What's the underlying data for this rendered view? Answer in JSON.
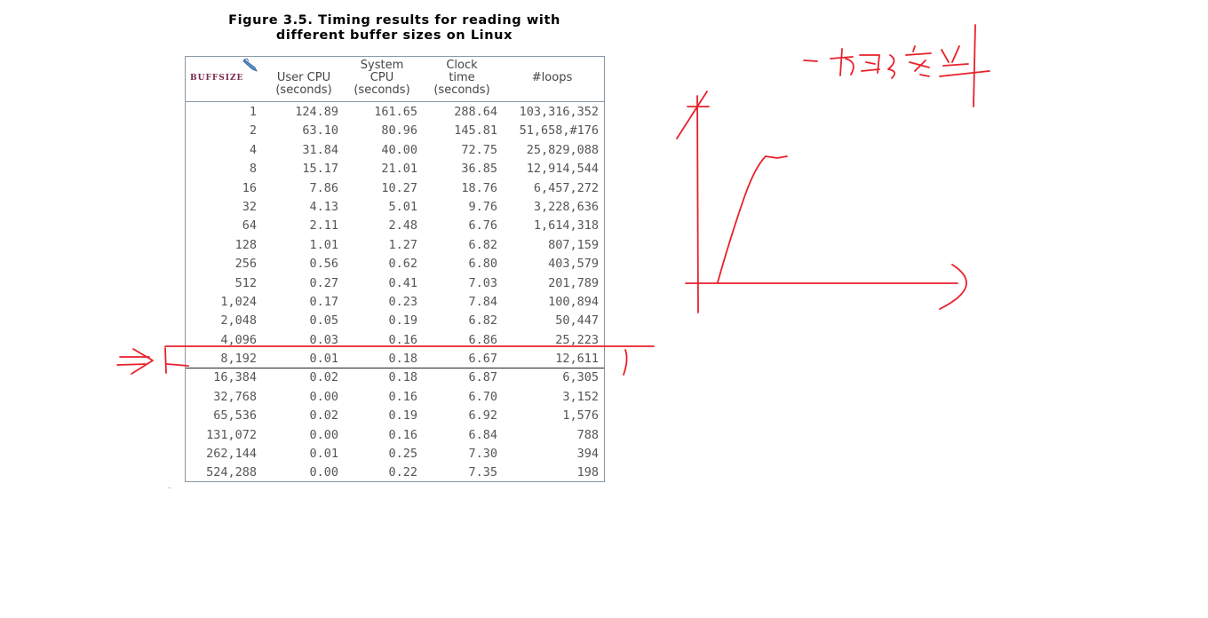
{
  "figure": {
    "title_line1": "Figure 3.5. Timing results for reading with",
    "title_line2": "different buffer sizes on Linux"
  },
  "table": {
    "headers": {
      "bufsize": "BUFFSIZE",
      "user_cpu": [
        "User CPU",
        "(seconds)"
      ],
      "system_cpu": [
        "System",
        "CPU",
        "(seconds)"
      ],
      "clock_time": [
        "Clock",
        "time",
        "(seconds)"
      ],
      "loops": [
        "#loops"
      ]
    },
    "rows": [
      [
        "1",
        "124.89",
        "161.65",
        "288.64",
        "103,316,352"
      ],
      [
        "2",
        "63.10",
        "80.96",
        "145.81",
        "51,658,#176"
      ],
      [
        "4",
        "31.84",
        "40.00",
        "72.75",
        "25,829,088"
      ],
      [
        "8",
        "15.17",
        "21.01",
        "36.85",
        "12,914,544"
      ],
      [
        "16",
        "7.86",
        "10.27",
        "18.76",
        "6,457,272"
      ],
      [
        "32",
        "4.13",
        "5.01",
        "9.76",
        "3,228,636"
      ],
      [
        "64",
        "2.11",
        "2.48",
        "6.76",
        "1,614,318"
      ],
      [
        "128",
        "1.01",
        "1.27",
        "6.82",
        "807,159"
      ],
      [
        "256",
        "0.56",
        "0.62",
        "6.80",
        "403,579"
      ],
      [
        "512",
        "0.27",
        "0.41",
        "7.03",
        "201,789"
      ],
      [
        "1,024",
        "0.17",
        "0.23",
        "7.84",
        "100,894"
      ],
      [
        "2,048",
        "0.05",
        "0.19",
        "6.82",
        "50,447"
      ],
      [
        "4,096",
        "0.03",
        "0.16",
        "6.86",
        "25,223"
      ],
      [
        "8,192",
        "0.01",
        "0.18",
        "6.67",
        "12,611"
      ],
      [
        "16,384",
        "0.02",
        "0.18",
        "6.87",
        "6,305"
      ],
      [
        "32,768",
        "0.00",
        "0.16",
        "6.70",
        "3,152"
      ],
      [
        "65,536",
        "0.02",
        "0.19",
        "6.92",
        "1,576"
      ],
      [
        "131,072",
        "0.00",
        "0.16",
        "6.84",
        "788"
      ],
      [
        "262,144",
        "0.01",
        "0.25",
        "7.30",
        "394"
      ],
      [
        "524,288",
        "0.00",
        "0.22",
        "7.35",
        "198"
      ]
    ]
  },
  "annotations": {
    "ink_color": "#e8202a",
    "handwritten_note": "一切的沙发"
  }
}
